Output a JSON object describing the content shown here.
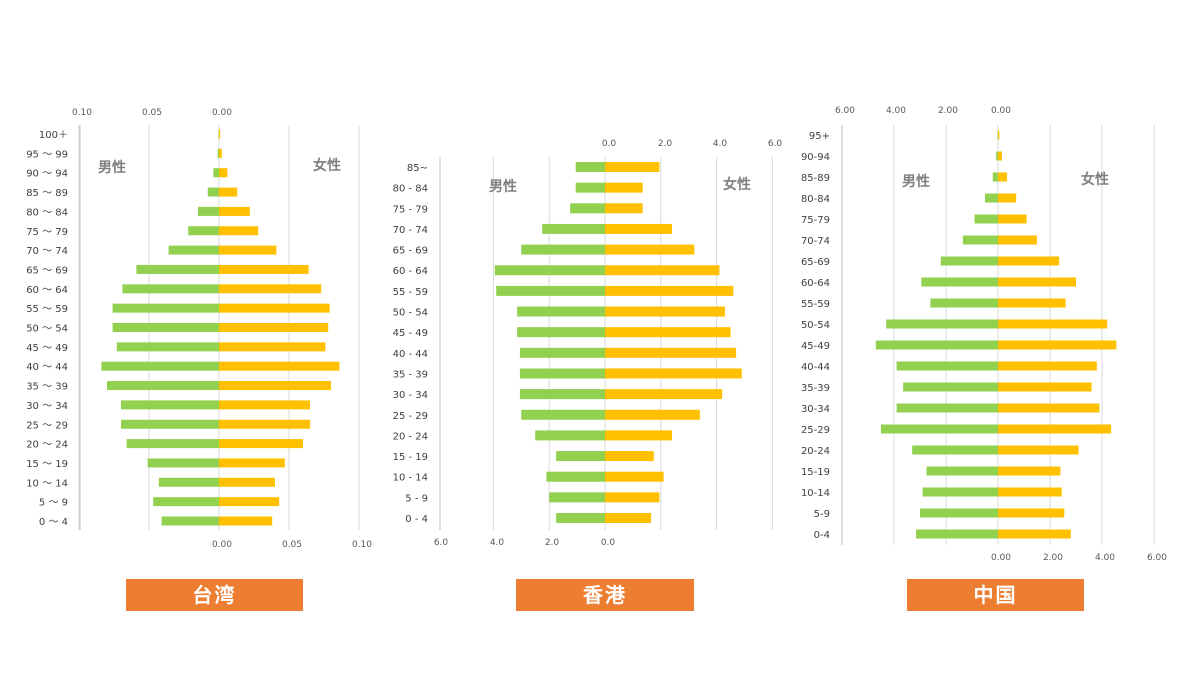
{
  "colors": {
    "male": "#92D050",
    "female": "#FFC000",
    "label_bg": "#ED7D31",
    "grid": "#d9d9d9"
  },
  "chart_data": [
    {
      "type": "bar",
      "region": "台湾",
      "male_label": "男性",
      "female_label": "女性",
      "top_ticks": [
        "0.10",
        "0.05",
        "0.00"
      ],
      "bottom_ticks": [
        "0.00",
        "0.05",
        "0.10"
      ],
      "xlim": [
        -0.1,
        0.1
      ],
      "categories": [
        "0 ～ 4",
        "5 ～ 9",
        "10 ～ 14",
        "15 ～ 19",
        "20 ～ 24",
        "25 ～ 29",
        "30 ～ 34",
        "35 ～ 39",
        "40 ～ 44",
        "45 ～ 49",
        "50 ～ 54",
        "55 ～ 59",
        "60 ～ 64",
        "65 ～ 69",
        "70 ～ 74",
        "75 ～ 79",
        "80 ～ 84",
        "85 ～ 89",
        "90 ～ 94",
        "95 ～ 99",
        "100＋"
      ],
      "series": [
        {
          "name": "男性",
          "values": [
            0.041,
            0.047,
            0.043,
            0.051,
            0.066,
            0.07,
            0.07,
            0.08,
            0.084,
            0.073,
            0.076,
            0.076,
            0.069,
            0.059,
            0.036,
            0.022,
            0.015,
            0.008,
            0.004,
            0.001,
            0.0003
          ]
        },
        {
          "name": "女性",
          "values": [
            0.038,
            0.043,
            0.04,
            0.047,
            0.06,
            0.065,
            0.065,
            0.08,
            0.086,
            0.076,
            0.078,
            0.079,
            0.073,
            0.064,
            0.041,
            0.028,
            0.022,
            0.013,
            0.006,
            0.002,
            0.0008
          ]
        }
      ]
    },
    {
      "type": "bar",
      "region": "香港",
      "male_label": "男性",
      "female_label": "女性",
      "top_ticks": [
        "0.0",
        "2.0",
        "4.0",
        "6.0"
      ],
      "bottom_ticks": [
        "6.0",
        "4.0",
        "2.0",
        "0.0"
      ],
      "xlim": [
        -6.0,
        6.0
      ],
      "categories": [
        "0 - 4",
        "5 - 9",
        "10 - 14",
        "15 - 19",
        "20 - 24",
        "25 - 29",
        "30 - 34",
        "35 - 39",
        "40 - 44",
        "45 - 49",
        "50 - 54",
        "55 - 59",
        "60 - 64",
        "65 - 69",
        "70 - 74",
        "75 - 79",
        "80 - 84",
        "85~"
      ],
      "series": [
        {
          "name": "男性",
          "values": [
            1.75,
            2.0,
            2.1,
            1.75,
            2.5,
            3.0,
            3.05,
            3.05,
            3.05,
            3.15,
            3.15,
            3.9,
            3.95,
            3.0,
            2.25,
            1.25,
            1.05,
            1.05
          ]
        },
        {
          "name": "女性",
          "values": [
            1.65,
            1.95,
            2.1,
            1.75,
            2.4,
            3.4,
            4.2,
            4.9,
            4.7,
            4.5,
            4.3,
            4.6,
            4.1,
            3.2,
            2.4,
            1.35,
            1.35,
            1.95
          ]
        }
      ]
    },
    {
      "type": "bar",
      "region": "中国",
      "male_label": "男性",
      "female_label": "女性",
      "top_ticks": [
        "6.00",
        "4.00",
        "2.00",
        "0.00"
      ],
      "bottom_ticks": [
        "0.00",
        "2.00",
        "4.00",
        "6.00"
      ],
      "xlim": [
        -6.0,
        6.0
      ],
      "categories": [
        "0-4",
        "5-9",
        "10-14",
        "15-19",
        "20-24",
        "25-29",
        "30-34",
        "35-39",
        "40-44",
        "45-49",
        "50-54",
        "55-59",
        "60-64",
        "65-69",
        "70-74",
        "75-79",
        "80-84",
        "85-89",
        "90-94",
        "95+"
      ],
      "series": [
        {
          "name": "男性",
          "values": [
            3.15,
            3.0,
            2.9,
            2.75,
            3.3,
            4.5,
            3.9,
            3.65,
            3.9,
            4.7,
            4.3,
            2.6,
            2.95,
            2.2,
            1.35,
            0.9,
            0.5,
            0.2,
            0.07,
            0.02
          ]
        },
        {
          "name": "女性",
          "values": [
            2.8,
            2.55,
            2.45,
            2.4,
            3.1,
            4.35,
            3.9,
            3.6,
            3.8,
            4.55,
            4.2,
            2.6,
            3.0,
            2.35,
            1.5,
            1.1,
            0.7,
            0.35,
            0.15,
            0.05
          ]
        }
      ]
    }
  ]
}
